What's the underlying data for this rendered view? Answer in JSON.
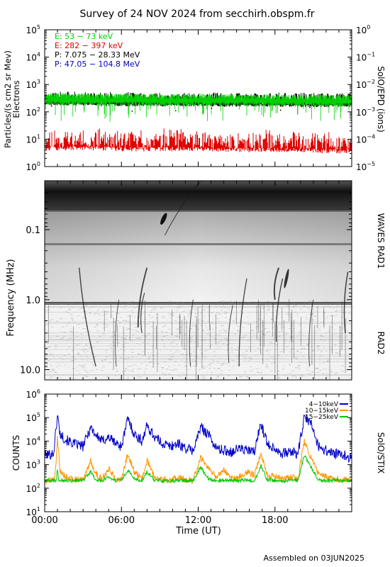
{
  "title": "Survey of 24 NOV 2024 from secchirh.obspm.fr",
  "footer": "Assembled on 03JUN2025",
  "chart_data": [
    {
      "id": "epd",
      "type": "line",
      "ylabel_lines": [
        "Particles/(s cm2 sr Mev)",
        "Electrons"
      ],
      "right_label": "SolO/EPD (ions)",
      "y_scale": "log",
      "ylim": [
        1,
        100000
      ],
      "left_ticks": [
        {
          "v": 1,
          "b": "10",
          "e": "0"
        },
        {
          "v": 10,
          "b": "10",
          "e": "1"
        },
        {
          "v": 100,
          "b": "10",
          "e": "2"
        },
        {
          "v": 1000,
          "b": "10",
          "e": "3"
        },
        {
          "v": 10000,
          "b": "10",
          "e": "4"
        },
        {
          "v": 100000,
          "b": "10",
          "e": "5"
        }
      ],
      "right_ticks": [
        {
          "b": "10",
          "e": "−5"
        },
        {
          "b": "10",
          "e": "−4"
        },
        {
          "b": "10",
          "e": "−3"
        },
        {
          "b": "10",
          "e": "−2"
        },
        {
          "b": "10",
          "e": "−1"
        },
        {
          "b": "10",
          "e": "0"
        }
      ],
      "xlim": [
        0,
        24
      ],
      "legend_placement": "top-left",
      "series": [
        {
          "name": "E: 53 − 73 keV",
          "color": "#00d000",
          "x": [
            0,
            2,
            4,
            6,
            8,
            10,
            12,
            14,
            16,
            18,
            20,
            22,
            24
          ],
          "values": [
            300,
            290,
            280,
            285,
            275,
            270,
            280,
            275,
            270,
            265,
            260,
            260,
            255
          ]
        },
        {
          "name": "E: 282 − 397 keV",
          "color": "#e00000",
          "x": [
            0,
            2,
            4,
            6,
            8,
            10,
            12,
            14,
            16,
            18,
            20,
            22,
            24
          ],
          "values": [
            7,
            7,
            7,
            6.5,
            6.5,
            6.5,
            6.5,
            6,
            6,
            6,
            6,
            5.5,
            5.5
          ]
        },
        {
          "name": "P: 7.075 − 28.33 MeV",
          "color": "#000000",
          "x": [
            0,
            2,
            4,
            6,
            8,
            10,
            12,
            14,
            16,
            18,
            20,
            22,
            24
          ],
          "values": [
            200,
            195,
            190,
            190,
            185,
            185,
            185,
            180,
            180,
            180,
            175,
            175,
            175
          ]
        },
        {
          "name": "P: 47.05 − 104.8 MeV",
          "color": "#0000c0",
          "x": [],
          "values": []
        }
      ]
    },
    {
      "id": "waves",
      "type": "heatmap",
      "ylabel": "Frequency (MHz)",
      "right_labels": [
        "WAVES RAD1",
        "RAD2"
      ],
      "y_scale": "log",
      "y_inverted": true,
      "ylim": [
        0.02,
        14
      ],
      "ticks": [
        0.1,
        1.0,
        10.0
      ],
      "tick_labels": [
        "0.1",
        "1.0",
        "10.0"
      ],
      "xlim": [
        0,
        24
      ],
      "band_split_mhz": 0.95
    },
    {
      "id": "stix",
      "type": "line",
      "ylabel": "COUNTS",
      "right_label": "SolO/STIX",
      "y_scale": "log",
      "ylim": [
        10,
        1000000
      ],
      "ticks": [
        {
          "v": 10,
          "b": "10",
          "e": "1"
        },
        {
          "v": 100,
          "b": "10",
          "e": "2"
        },
        {
          "v": 1000,
          "b": "10",
          "e": "3"
        },
        {
          "v": 10000,
          "b": "10",
          "e": "4"
        },
        {
          "v": 100000,
          "b": "10",
          "e": "5"
        },
        {
          "v": 1000000,
          "b": "10",
          "e": "6"
        }
      ],
      "xlim": [
        0,
        24
      ],
      "x_ticks": [
        0,
        6,
        12,
        18
      ],
      "x_tick_labels": [
        "00:00",
        "06:00",
        "12:00",
        "18:00"
      ],
      "xlabel": "Time (UT)",
      "legend_placement": "top-right",
      "series": [
        {
          "name": "4−10keV",
          "color": "#0000c8",
          "x": [
            0,
            0.7,
            1.0,
            1.2,
            1.6,
            2.2,
            3.0,
            3.6,
            4.0,
            4.5,
            5.0,
            5.6,
            6.0,
            6.5,
            7.0,
            7.6,
            8.0,
            8.6,
            9.2,
            9.8,
            10.4,
            11.0,
            11.6,
            12.2,
            12.8,
            13.4,
            14.0,
            14.6,
            15.2,
            15.8,
            16.4,
            16.9,
            17.4,
            18.0,
            18.6,
            19.2,
            19.8,
            20.3,
            20.8,
            21.4,
            22.0,
            22.6,
            23.2,
            24
          ],
          "values": [
            2500,
            3000,
            130000,
            20000,
            12000,
            8000,
            6000,
            40000,
            18000,
            10000,
            15000,
            8000,
            6000,
            90000,
            20000,
            10000,
            45000,
            15000,
            8000,
            6000,
            8000,
            5000,
            4000,
            40000,
            20000,
            5000,
            4000,
            3500,
            5000,
            4000,
            3500,
            60000,
            8000,
            5000,
            3000,
            3500,
            3000,
            100000,
            60000,
            6000,
            4000,
            3000,
            2500,
            2000
          ]
        },
        {
          "name": "10−15keV",
          "color": "#ff9600",
          "x": [
            0,
            0.8,
            1.0,
            1.2,
            1.6,
            2.2,
            3.0,
            3.6,
            4.0,
            4.5,
            5.0,
            5.6,
            6.0,
            6.5,
            7.0,
            7.6,
            8.0,
            8.6,
            9.2,
            9.8,
            10.4,
            11.0,
            11.6,
            12.2,
            12.8,
            13.4,
            14.0,
            14.6,
            15.2,
            15.8,
            16.4,
            16.9,
            17.4,
            18.0,
            18.6,
            19.2,
            19.8,
            20.3,
            20.8,
            21.4,
            22.0,
            22.6,
            23.2,
            24
          ],
          "values": [
            220,
            240,
            15000,
            600,
            300,
            250,
            230,
            1500,
            400,
            250,
            700,
            250,
            230,
            3000,
            500,
            250,
            1500,
            300,
            230,
            220,
            300,
            220,
            210,
            2000,
            700,
            300,
            600,
            250,
            300,
            500,
            350,
            3000,
            400,
            300,
            250,
            300,
            250,
            10000,
            2000,
            400,
            300,
            250,
            230,
            220
          ]
        },
        {
          "name": "15−25keV",
          "color": "#00c800",
          "x": [
            0,
            0.9,
            1.0,
            1.1,
            1.6,
            2.2,
            3.0,
            3.6,
            4.0,
            4.5,
            5.0,
            5.6,
            6.0,
            6.5,
            7.0,
            7.6,
            8.0,
            8.6,
            9.2,
            9.8,
            10.4,
            11.0,
            11.6,
            12.2,
            12.8,
            13.4,
            14.0,
            14.6,
            15.2,
            15.8,
            16.4,
            16.9,
            17.4,
            18.0,
            18.6,
            19.2,
            19.8,
            20.3,
            20.8,
            21.4,
            22.0,
            22.6,
            23.2,
            24
          ],
          "values": [
            210,
            210,
            700,
            230,
            210,
            210,
            210,
            500,
            220,
            210,
            300,
            210,
            210,
            600,
            230,
            210,
            500,
            220,
            210,
            210,
            210,
            210,
            210,
            800,
            250,
            210,
            220,
            210,
            220,
            220,
            210,
            900,
            230,
            210,
            210,
            210,
            210,
            2500,
            800,
            220,
            210,
            210,
            210,
            210
          ]
        }
      ]
    }
  ]
}
